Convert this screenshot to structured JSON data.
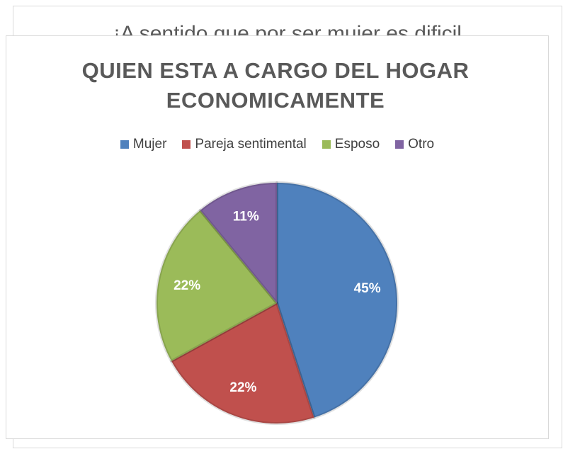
{
  "background_title": "¡A sentido que por ser mujer es dificil",
  "chart_data": {
    "type": "pie",
    "title": "QUIEN ESTA A CARGO DEL HOGAR ECONOMICAMENTE",
    "categories": [
      "Mujer",
      "Pareja sentimental",
      "Esposo",
      "Otro"
    ],
    "values": [
      45,
      22,
      22,
      11
    ],
    "value_labels": [
      "45%",
      "22%",
      "22%",
      "11%"
    ],
    "colors": [
      "#4f81bd",
      "#c0504d",
      "#9bbb59",
      "#8064a2"
    ],
    "legend": "top"
  }
}
